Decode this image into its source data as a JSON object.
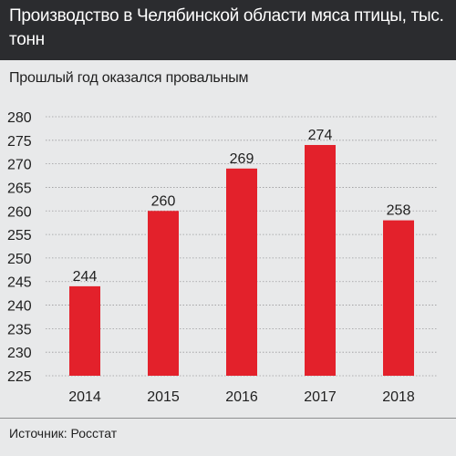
{
  "header": {
    "title": "Производство в Челябинской области мяса птицы, тыс. тонн"
  },
  "subtitle": "Прошлый год оказался провальным",
  "source": "Источник: Росстат",
  "colors": {
    "bar": "#e3212b",
    "header_bg": "#2b2c2f",
    "background": "#e8e9ea",
    "grid": "#9a9b9d"
  },
  "chart_data": {
    "type": "bar",
    "title": "Производство в Челябинской области мяса птицы, тыс. тонн",
    "subtitle": "Прошлый год оказался провальным",
    "categories": [
      "2014",
      "2015",
      "2016",
      "2017",
      "2018"
    ],
    "values": [
      244,
      260,
      269,
      274,
      258
    ],
    "value_labels": [
      "244",
      "260",
      "269",
      "274",
      "258"
    ],
    "y_ticks": [
      "225",
      "230",
      "235",
      "240",
      "245",
      "250",
      "255",
      "260",
      "265",
      "270",
      "275",
      "280"
    ],
    "ylim": [
      225,
      280
    ],
    "grid": true,
    "legend": "none",
    "xlabel": "",
    "ylabel": ""
  }
}
